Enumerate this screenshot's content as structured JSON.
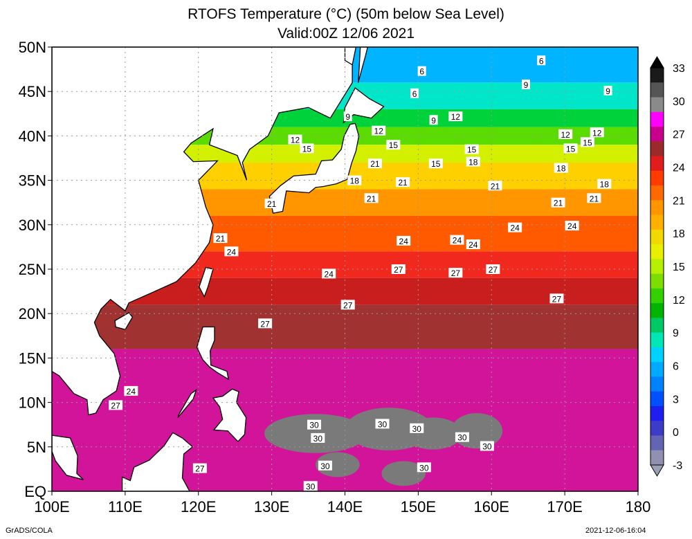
{
  "title_line1": "RTOFS Temperature (°C) (50m below Sea Level)",
  "title_line2": "Valid:00Z 12/06 2021",
  "footer_left": "GrADS/COLA",
  "footer_right": "2021-12-06-16:04",
  "map": {
    "lon_min": 100,
    "lon_max": 180,
    "lat_min": 0,
    "lat_max": 50,
    "lon_ticks": [
      "100E",
      "110E",
      "120E",
      "130E",
      "140E",
      "150E",
      "160E",
      "170E",
      "180"
    ],
    "lat_ticks": [
      "EQ",
      "5N",
      "10N",
      "15N",
      "20N",
      "25N",
      "30N",
      "35N",
      "40N",
      "45N",
      "50N"
    ],
    "grid": true,
    "colorbar": {
      "labels": [
        "33",
        "30",
        "27",
        "24",
        "21",
        "18",
        "15",
        "12",
        "9",
        "6",
        "3",
        "0",
        "-3"
      ],
      "colors": [
        "#1a1a1a",
        "#555555",
        "#8a8a8a",
        "#ff00ff",
        "#c8008c",
        "#9b2a2a",
        "#e11c1c",
        "#ff3c00",
        "#ff6a00",
        "#ff9600",
        "#ffb000",
        "#f0d800",
        "#e6f000",
        "#b4f000",
        "#7ddc00",
        "#32d200",
        "#00b400",
        "#00c864",
        "#00e6b4",
        "#00d2ff",
        "#00aaff",
        "#0082ff",
        "#0050ff",
        "#1e1ef0",
        "#3c3cc8",
        "#6464b4",
        "#9090b0"
      ]
    },
    "bands": [
      {
        "lat": 50,
        "temp": 3
      },
      {
        "lat": 46,
        "temp": 6
      },
      {
        "lat": 43,
        "temp": 9
      },
      {
        "lat": 41,
        "temp": 12
      },
      {
        "lat": 39,
        "temp": 15
      },
      {
        "lat": 37,
        "temp": 18
      },
      {
        "lat": 34,
        "temp": 21
      },
      {
        "lat": 31,
        "temp": 24
      },
      {
        "lat": 27,
        "temp": 26
      },
      {
        "lat": 24,
        "temp": 27
      },
      {
        "lat": 21,
        "temp": 28
      },
      {
        "lat": 16,
        "temp": 29
      },
      {
        "lat": 0,
        "temp": 30
      }
    ],
    "contour_labels": [
      {
        "t": "6",
        "lon": 150.5,
        "lat": 47.3
      },
      {
        "t": "6",
        "lon": 149.5,
        "lat": 44.8
      },
      {
        "t": "6",
        "lon": 166.8,
        "lat": 48.5
      },
      {
        "t": "9",
        "lon": 140.4,
        "lat": 42.2
      },
      {
        "t": "9",
        "lon": 152.1,
        "lat": 41.8
      },
      {
        "t": "9",
        "lon": 164.7,
        "lat": 45.8
      },
      {
        "t": "9",
        "lon": 175.9,
        "lat": 45.1
      },
      {
        "t": "12",
        "lon": 133.2,
        "lat": 39.6
      },
      {
        "t": "12",
        "lon": 144.6,
        "lat": 40.6
      },
      {
        "t": "12",
        "lon": 155.1,
        "lat": 42.2
      },
      {
        "t": "12",
        "lon": 170.1,
        "lat": 40.2
      },
      {
        "t": "12",
        "lon": 174.4,
        "lat": 40.4
      },
      {
        "t": "15",
        "lon": 134.8,
        "lat": 38.6
      },
      {
        "t": "15",
        "lon": 146.6,
        "lat": 39.0
      },
      {
        "t": "15",
        "lon": 157.3,
        "lat": 38.5
      },
      {
        "t": "15",
        "lon": 170.8,
        "lat": 38.6
      },
      {
        "t": "15",
        "lon": 173.1,
        "lat": 39.3
      },
      {
        "t": "15",
        "lon": 152.4,
        "lat": 36.9
      },
      {
        "t": "18",
        "lon": 141.3,
        "lat": 35.0
      },
      {
        "t": "18",
        "lon": 157.5,
        "lat": 37.1
      },
      {
        "t": "18",
        "lon": 169.5,
        "lat": 36.4
      },
      {
        "t": "18",
        "lon": 175.4,
        "lat": 34.6
      },
      {
        "t": "21",
        "lon": 130.0,
        "lat": 32.4
      },
      {
        "t": "21",
        "lon": 144.1,
        "lat": 36.9
      },
      {
        "t": "21",
        "lon": 147.9,
        "lat": 34.8
      },
      {
        "t": "21",
        "lon": 143.6,
        "lat": 33.0
      },
      {
        "t": "21",
        "lon": 160.5,
        "lat": 34.4
      },
      {
        "t": "21",
        "lon": 169.1,
        "lat": 32.5
      },
      {
        "t": "21",
        "lon": 174.0,
        "lat": 33.0
      },
      {
        "t": "21",
        "lon": 123.0,
        "lat": 28.5
      },
      {
        "t": "24",
        "lon": 124.5,
        "lat": 27.0
      },
      {
        "t": "24",
        "lon": 148.0,
        "lat": 28.2
      },
      {
        "t": "24",
        "lon": 155.3,
        "lat": 28.3
      },
      {
        "t": "24",
        "lon": 157.5,
        "lat": 27.8
      },
      {
        "t": "24",
        "lon": 163.2,
        "lat": 29.7
      },
      {
        "t": "24",
        "lon": 171.0,
        "lat": 29.9
      },
      {
        "t": "24",
        "lon": 137.8,
        "lat": 24.5
      },
      {
        "t": "24",
        "lon": 110.8,
        "lat": 11.3
      },
      {
        "t": "27",
        "lon": 147.3,
        "lat": 25.0
      },
      {
        "t": "27",
        "lon": 155.1,
        "lat": 24.6
      },
      {
        "t": "27",
        "lon": 160.2,
        "lat": 25.0
      },
      {
        "t": "27",
        "lon": 140.4,
        "lat": 21.0
      },
      {
        "t": "27",
        "lon": 168.9,
        "lat": 21.7
      },
      {
        "t": "27",
        "lon": 129.1,
        "lat": 18.9
      },
      {
        "t": "27",
        "lon": 108.7,
        "lat": 9.7
      },
      {
        "t": "27",
        "lon": 120.2,
        "lat": 2.6
      },
      {
        "t": "30",
        "lon": 135.8,
        "lat": 7.5
      },
      {
        "t": "30",
        "lon": 136.3,
        "lat": 6.0
      },
      {
        "t": "30",
        "lon": 145.1,
        "lat": 7.6
      },
      {
        "t": "30",
        "lon": 149.8,
        "lat": 7.1
      },
      {
        "t": "30",
        "lon": 156.0,
        "lat": 6.1
      },
      {
        "t": "30",
        "lon": 159.4,
        "lat": 5.1
      },
      {
        "t": "30",
        "lon": 137.3,
        "lat": 2.9
      },
      {
        "t": "30",
        "lon": 135.3,
        "lat": 0.6
      },
      {
        "t": "30",
        "lon": 150.8,
        "lat": 2.7
      }
    ]
  }
}
